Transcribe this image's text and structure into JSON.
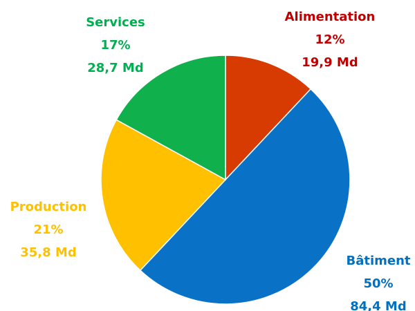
{
  "chart_data": {
    "type": "pie",
    "categories": [
      "Alimentation",
      "Bâtiment",
      "Production",
      "Services"
    ],
    "values": [
      12,
      50,
      21,
      17
    ],
    "value_labels": [
      "12%",
      "50%",
      "21%",
      "17%"
    ],
    "amounts": [
      19.9,
      84.4,
      35.8,
      28.7
    ],
    "amount_labels": [
      "19,9 Md",
      "84,4 Md",
      "35,8 Md",
      "28,7 Md"
    ],
    "colors": [
      "#d83b01",
      "#0a72c6",
      "#ffc000",
      "#10b04c"
    ],
    "label_colors": [
      "#c00000",
      "#0070c0",
      "#ffc000",
      "#00b050"
    ]
  }
}
